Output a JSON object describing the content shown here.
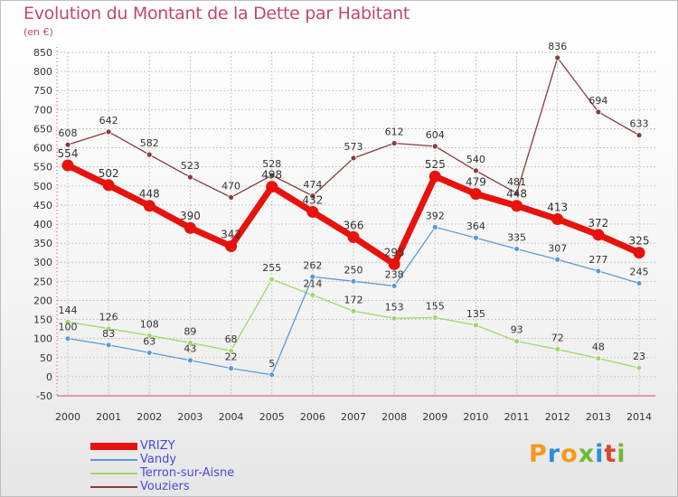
{
  "header": {
    "title": "Evolution du Montant de la Dette par Habitant",
    "subtitle": "(en €)"
  },
  "brand": {
    "logo_text": "Proxiti"
  },
  "chart_data": {
    "type": "line",
    "x": [
      "2000",
      "2001",
      "2002",
      "2003",
      "2004",
      "2005",
      "2006",
      "2007",
      "2008",
      "2009",
      "2010",
      "2011",
      "2012",
      "2013",
      "2014"
    ],
    "ylim": [
      -50,
      850
    ],
    "yticks": [
      -50,
      0,
      50,
      100,
      150,
      200,
      250,
      300,
      350,
      400,
      450,
      500,
      550,
      600,
      650,
      700,
      750,
      800,
      850
    ],
    "grid": true,
    "legend_position": "bottom-left",
    "series": [
      {
        "name": "VRIZY",
        "color": "#e8120c",
        "values": [
          554,
          502,
          448,
          390,
          342,
          498,
          432,
          366,
          295,
          525,
          479,
          448,
          413,
          372,
          325
        ]
      },
      {
        "name": "Vandy",
        "color": "#5b9bd5",
        "values": [
          100,
          83,
          63,
          43,
          22,
          5,
          262,
          250,
          238,
          392,
          364,
          335,
          307,
          277,
          245
        ]
      },
      {
        "name": "Terron-sur-Aisne",
        "color": "#9dd86b",
        "values": [
          144,
          126,
          108,
          89,
          68,
          255,
          214,
          172,
          153,
          155,
          135,
          93,
          72,
          48,
          23
        ]
      },
      {
        "name": "Vouziers",
        "color": "#8b3a3a",
        "values": [
          608,
          642,
          582,
          523,
          470,
          528,
          474,
          573,
          612,
          604,
          540,
          481,
          836,
          694,
          633
        ]
      }
    ]
  }
}
